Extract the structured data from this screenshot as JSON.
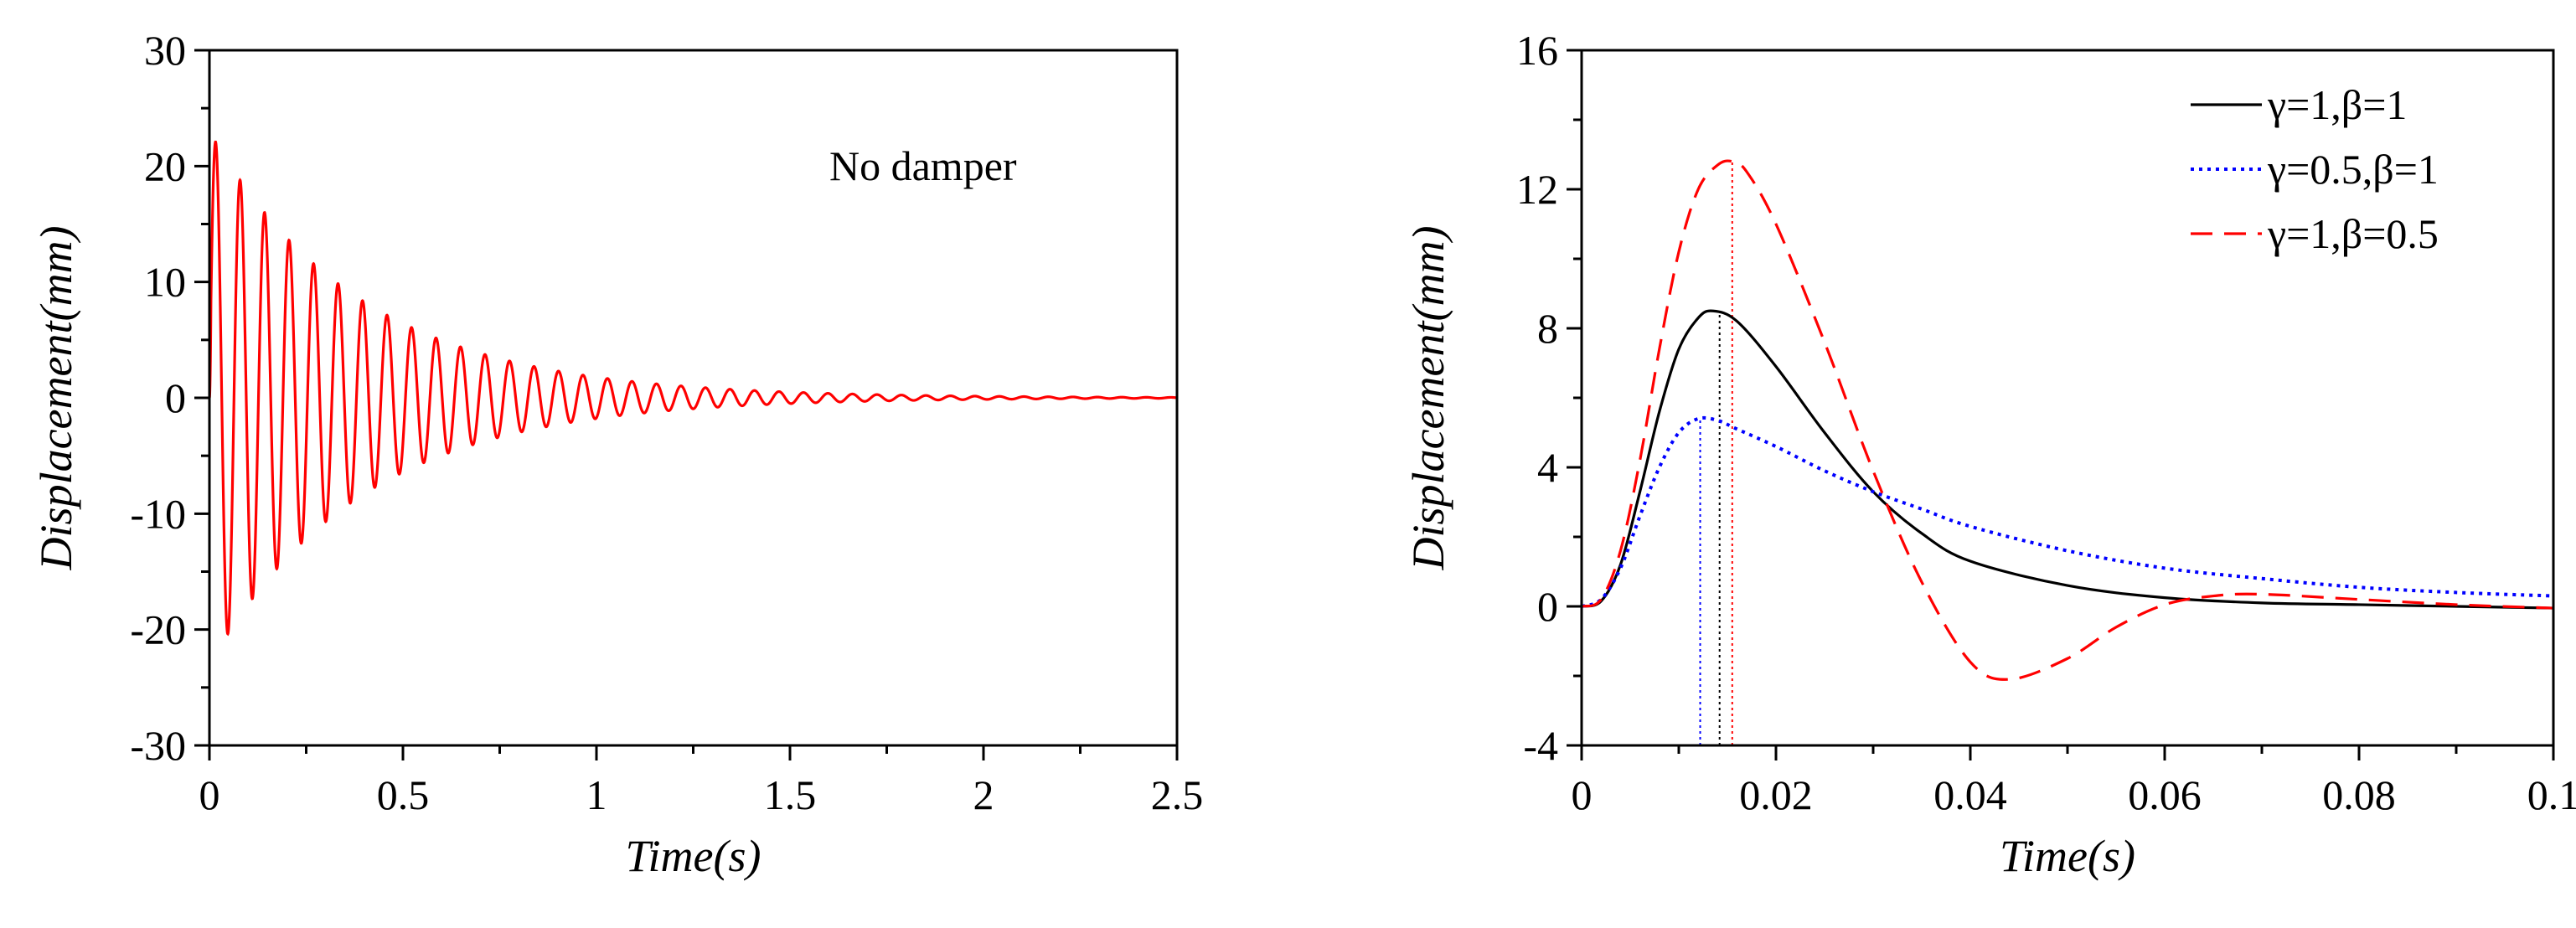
{
  "colors": {
    "red": "#ff0000",
    "black": "#000000",
    "blue": "#0000ff"
  },
  "chart_data": [
    {
      "type": "line",
      "xlabel": "Time(s)",
      "ylabel": "Displacement(mm)",
      "xlim": [
        0,
        2.5
      ],
      "ylim": [
        -30,
        30
      ],
      "xticks": [
        0,
        0.5,
        1,
        1.5,
        2,
        2.5
      ],
      "xtick_labels": [
        "0",
        "0.5",
        "1",
        "1.5",
        "2",
        "2.5"
      ],
      "yticks": [
        -30,
        -20,
        -10,
        0,
        10,
        20,
        30
      ],
      "ytick_labels": [
        "-30",
        "-20",
        "-10",
        "0",
        "10",
        "20",
        "30"
      ],
      "annotation": "No damper",
      "series": [
        {
          "name": "No damper",
          "color": "#ff0000",
          "style": "solid",
          "model": {
            "kind": "decaying_sine",
            "amplitude": 23,
            "decay_rate": 2.55,
            "frequency_hz": 15.8,
            "peak_time": 0.016,
            "first_peak": 21.7,
            "first_trough": -20.3
          }
        }
      ]
    },
    {
      "type": "line",
      "xlabel": "Time(s)",
      "ylabel": "Displacement(mm)",
      "xlim": [
        0,
        0.1
      ],
      "ylim": [
        -4,
        16
      ],
      "xticks": [
        0,
        0.02,
        0.04,
        0.06,
        0.08,
        0.1
      ],
      "xtick_labels": [
        "0",
        "0.02",
        "0.04",
        "0.06",
        "0.08",
        "0.1"
      ],
      "yticks": [
        -4,
        0,
        4,
        8,
        12,
        16
      ],
      "ytick_labels": [
        "-4",
        "0",
        "4",
        "8",
        "12",
        "16"
      ],
      "legend_position": "top-right",
      "series": [
        {
          "name": "γ=1,β=1",
          "color": "#000000",
          "style": "solid",
          "x": [
            0,
            0.002,
            0.004,
            0.006,
            0.008,
            0.01,
            0.012,
            0.0135,
            0.016,
            0.02,
            0.025,
            0.03,
            0.035,
            0.04,
            0.05,
            0.06,
            0.07,
            0.08,
            0.09,
            0.1
          ],
          "y": [
            0,
            0.15,
            1.2,
            3.3,
            5.6,
            7.4,
            8.3,
            8.5,
            8.2,
            6.9,
            5.0,
            3.3,
            2.1,
            1.3,
            0.6,
            0.25,
            0.1,
            0.05,
            0.0,
            -0.05
          ]
        },
        {
          "name": "γ=0.5,β=1",
          "color": "#0000ff",
          "style": "dotted",
          "x": [
            0,
            0.002,
            0.004,
            0.006,
            0.008,
            0.01,
            0.012,
            0.014,
            0.016,
            0.02,
            0.025,
            0.03,
            0.035,
            0.04,
            0.05,
            0.06,
            0.07,
            0.08,
            0.09,
            0.1
          ],
          "y": [
            0,
            0.2,
            1.1,
            2.6,
            4.0,
            5.0,
            5.4,
            5.35,
            5.1,
            4.6,
            3.9,
            3.3,
            2.8,
            2.3,
            1.6,
            1.1,
            0.8,
            0.55,
            0.4,
            0.3
          ]
        },
        {
          "name": "γ=1,β=0.5",
          "color": "#ff0000",
          "style": "dashed",
          "x": [
            0,
            0.002,
            0.004,
            0.006,
            0.008,
            0.01,
            0.012,
            0.014,
            0.0155,
            0.017,
            0.02,
            0.025,
            0.03,
            0.035,
            0.04,
            0.044,
            0.05,
            0.055,
            0.06,
            0.065,
            0.07,
            0.08,
            0.09,
            0.1
          ],
          "y": [
            0,
            0.2,
            1.6,
            4.2,
            7.4,
            10.2,
            12.0,
            12.7,
            12.8,
            12.5,
            11.0,
            7.6,
            3.9,
            0.7,
            -1.6,
            -2.1,
            -1.5,
            -0.6,
            0.05,
            0.3,
            0.35,
            0.2,
            0.05,
            -0.05
          ]
        }
      ],
      "peak_markers": [
        {
          "series": "γ=0.5,β=1",
          "x": 0.0122,
          "y": 5.4,
          "color": "#0000ff"
        },
        {
          "series": "γ=1,β=1",
          "x": 0.0142,
          "y": 8.5,
          "color": "#000000"
        },
        {
          "series": "γ=1,β=0.5",
          "x": 0.0155,
          "y": 12.8,
          "color": "#ff0000"
        }
      ]
    }
  ]
}
